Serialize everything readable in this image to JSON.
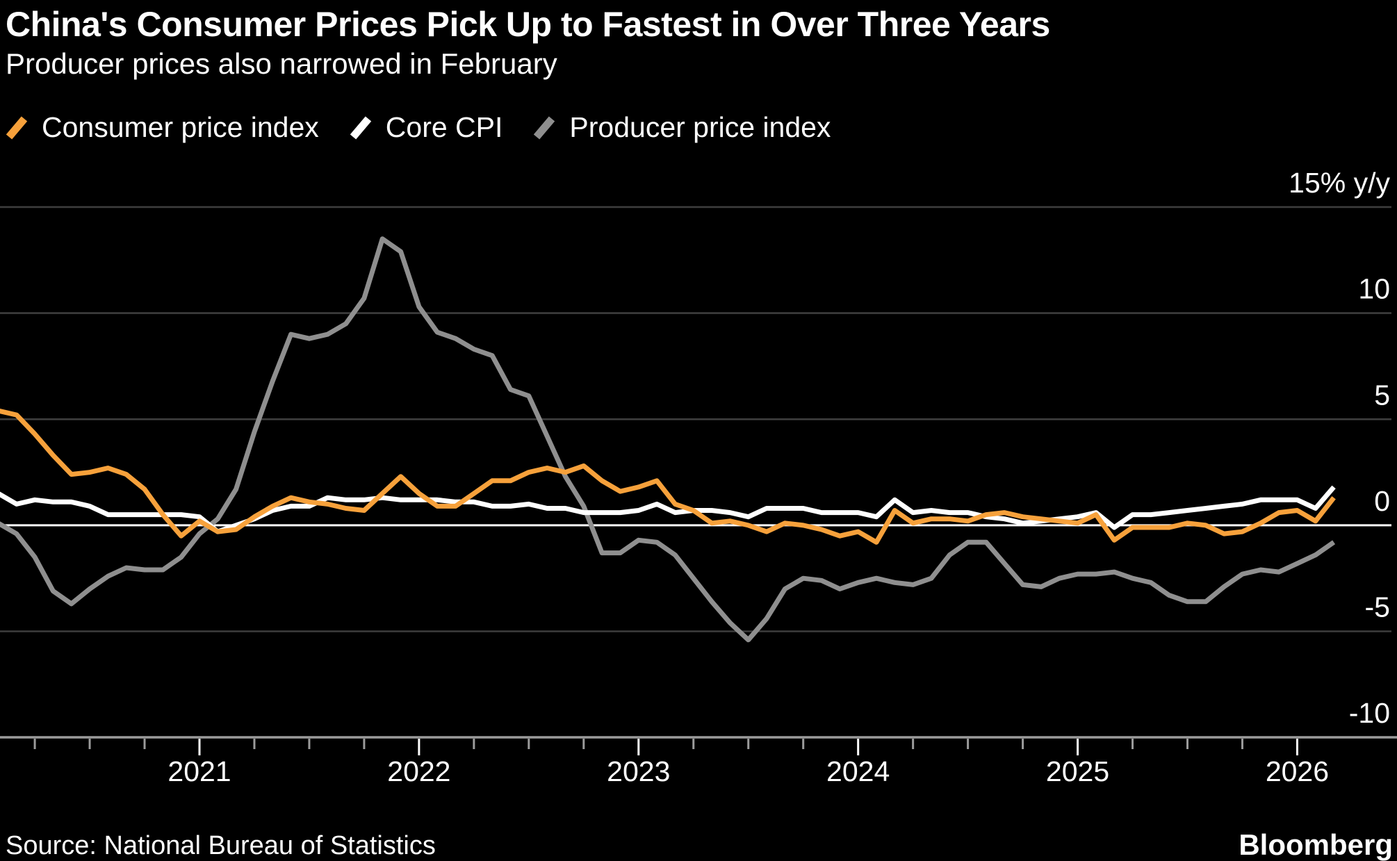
{
  "header": {
    "title": "China's Consumer Prices Pick Up to Fastest in Over Three Years",
    "subtitle": "Producer prices also narrowed in February"
  },
  "source": "Source: National Bureau of Statistics",
  "brand": "Bloomberg",
  "chart_data": {
    "type": "line",
    "title": "China's Consumer Prices Pick Up to Fastest in Over Three Years",
    "subtitle": "Producer prices also narrowed in February",
    "frequency": "monthly",
    "x_start": "2020-01",
    "x_end": "2026-02",
    "x_tick_years": [
      2021,
      2022,
      2023,
      2024,
      2025,
      2026
    ],
    "x_minor_ticks": "quarterly",
    "y_axis": {
      "unit": "% y/y",
      "ticks": [
        15,
        10,
        5,
        0,
        -5,
        -10
      ],
      "tick_labels": [
        "15% y/y",
        "10",
        "5",
        "0",
        "-5",
        "-10"
      ],
      "range": [
        -10,
        17
      ],
      "zero_line": true
    },
    "grid": "horizontal",
    "legend_position": "top",
    "colors": {
      "background": "#000000",
      "gridline": "#3D3D3D",
      "zero_line": "#FFFFFF",
      "axis": "#9B9B9B",
      "major_tick": "#FFFFFF",
      "text": "#FFFFFF"
    },
    "series": [
      {
        "name": "Consumer price index",
        "color": "#F7A13B",
        "values": [
          5.4,
          5.2,
          4.3,
          3.3,
          2.4,
          2.5,
          2.7,
          2.4,
          1.7,
          0.5,
          -0.5,
          0.2,
          -0.3,
          -0.2,
          0.4,
          0.9,
          1.3,
          1.1,
          1.0,
          0.8,
          0.7,
          1.5,
          2.3,
          1.5,
          0.9,
          0.9,
          1.5,
          2.1,
          2.1,
          2.5,
          2.7,
          2.5,
          2.8,
          2.1,
          1.6,
          1.8,
          2.1,
          1.0,
          0.7,
          0.1,
          0.2,
          0.0,
          -0.3,
          0.1,
          0.0,
          -0.2,
          -0.5,
          -0.3,
          -0.8,
          0.7,
          0.1,
          0.3,
          0.3,
          0.2,
          0.5,
          0.6,
          0.4,
          0.3,
          0.2,
          0.1,
          0.5,
          -0.7,
          -0.1,
          -0.1,
          -0.1,
          0.1,
          0.0,
          -0.4,
          -0.3,
          0.1,
          0.6,
          0.7,
          0.2,
          1.3
        ]
      },
      {
        "name": "Core CPI",
        "color": "#FFFFFF",
        "values": [
          1.5,
          1.0,
          1.2,
          1.1,
          1.1,
          0.9,
          0.5,
          0.5,
          0.5,
          0.5,
          0.5,
          0.4,
          -0.3,
          0.0,
          0.3,
          0.7,
          0.9,
          0.9,
          1.3,
          1.2,
          1.2,
          1.3,
          1.2,
          1.2,
          1.2,
          1.1,
          1.1,
          0.9,
          0.9,
          1.0,
          0.8,
          0.8,
          0.6,
          0.6,
          0.6,
          0.7,
          1.0,
          0.6,
          0.7,
          0.7,
          0.6,
          0.4,
          0.8,
          0.8,
          0.8,
          0.6,
          0.6,
          0.6,
          0.4,
          1.2,
          0.6,
          0.7,
          0.6,
          0.6,
          0.4,
          0.3,
          0.1,
          0.2,
          0.3,
          0.4,
          0.6,
          -0.1,
          0.5,
          0.5,
          0.6,
          0.7,
          0.8,
          0.9,
          1.0,
          1.2,
          1.2,
          1.2,
          0.8,
          1.8
        ]
      },
      {
        "name": "Producer price index",
        "color": "#8F8F8F",
        "values": [
          0.1,
          -0.4,
          -1.5,
          -3.1,
          -3.7,
          -3.0,
          -2.4,
          -2.0,
          -2.1,
          -2.1,
          -1.5,
          -0.4,
          0.3,
          1.7,
          4.4,
          6.8,
          9.0,
          8.8,
          9.0,
          9.5,
          10.7,
          13.5,
          12.9,
          10.3,
          9.1,
          8.8,
          8.3,
          8.0,
          6.4,
          6.1,
          4.2,
          2.3,
          0.9,
          -1.3,
          -1.3,
          -0.7,
          -0.8,
          -1.4,
          -2.5,
          -3.6,
          -4.6,
          -5.4,
          -4.4,
          -3.0,
          -2.5,
          -2.6,
          -3.0,
          -2.7,
          -2.5,
          -2.7,
          -2.8,
          -2.5,
          -1.4,
          -0.8,
          -0.8,
          -1.8,
          -2.8,
          -2.9,
          -2.5,
          -2.3,
          -2.3,
          -2.2,
          -2.5,
          -2.7,
          -3.3,
          -3.6,
          -3.6,
          -2.9,
          -2.3,
          -2.1,
          -2.2,
          -1.8,
          -1.4,
          -0.8
        ]
      }
    ]
  }
}
